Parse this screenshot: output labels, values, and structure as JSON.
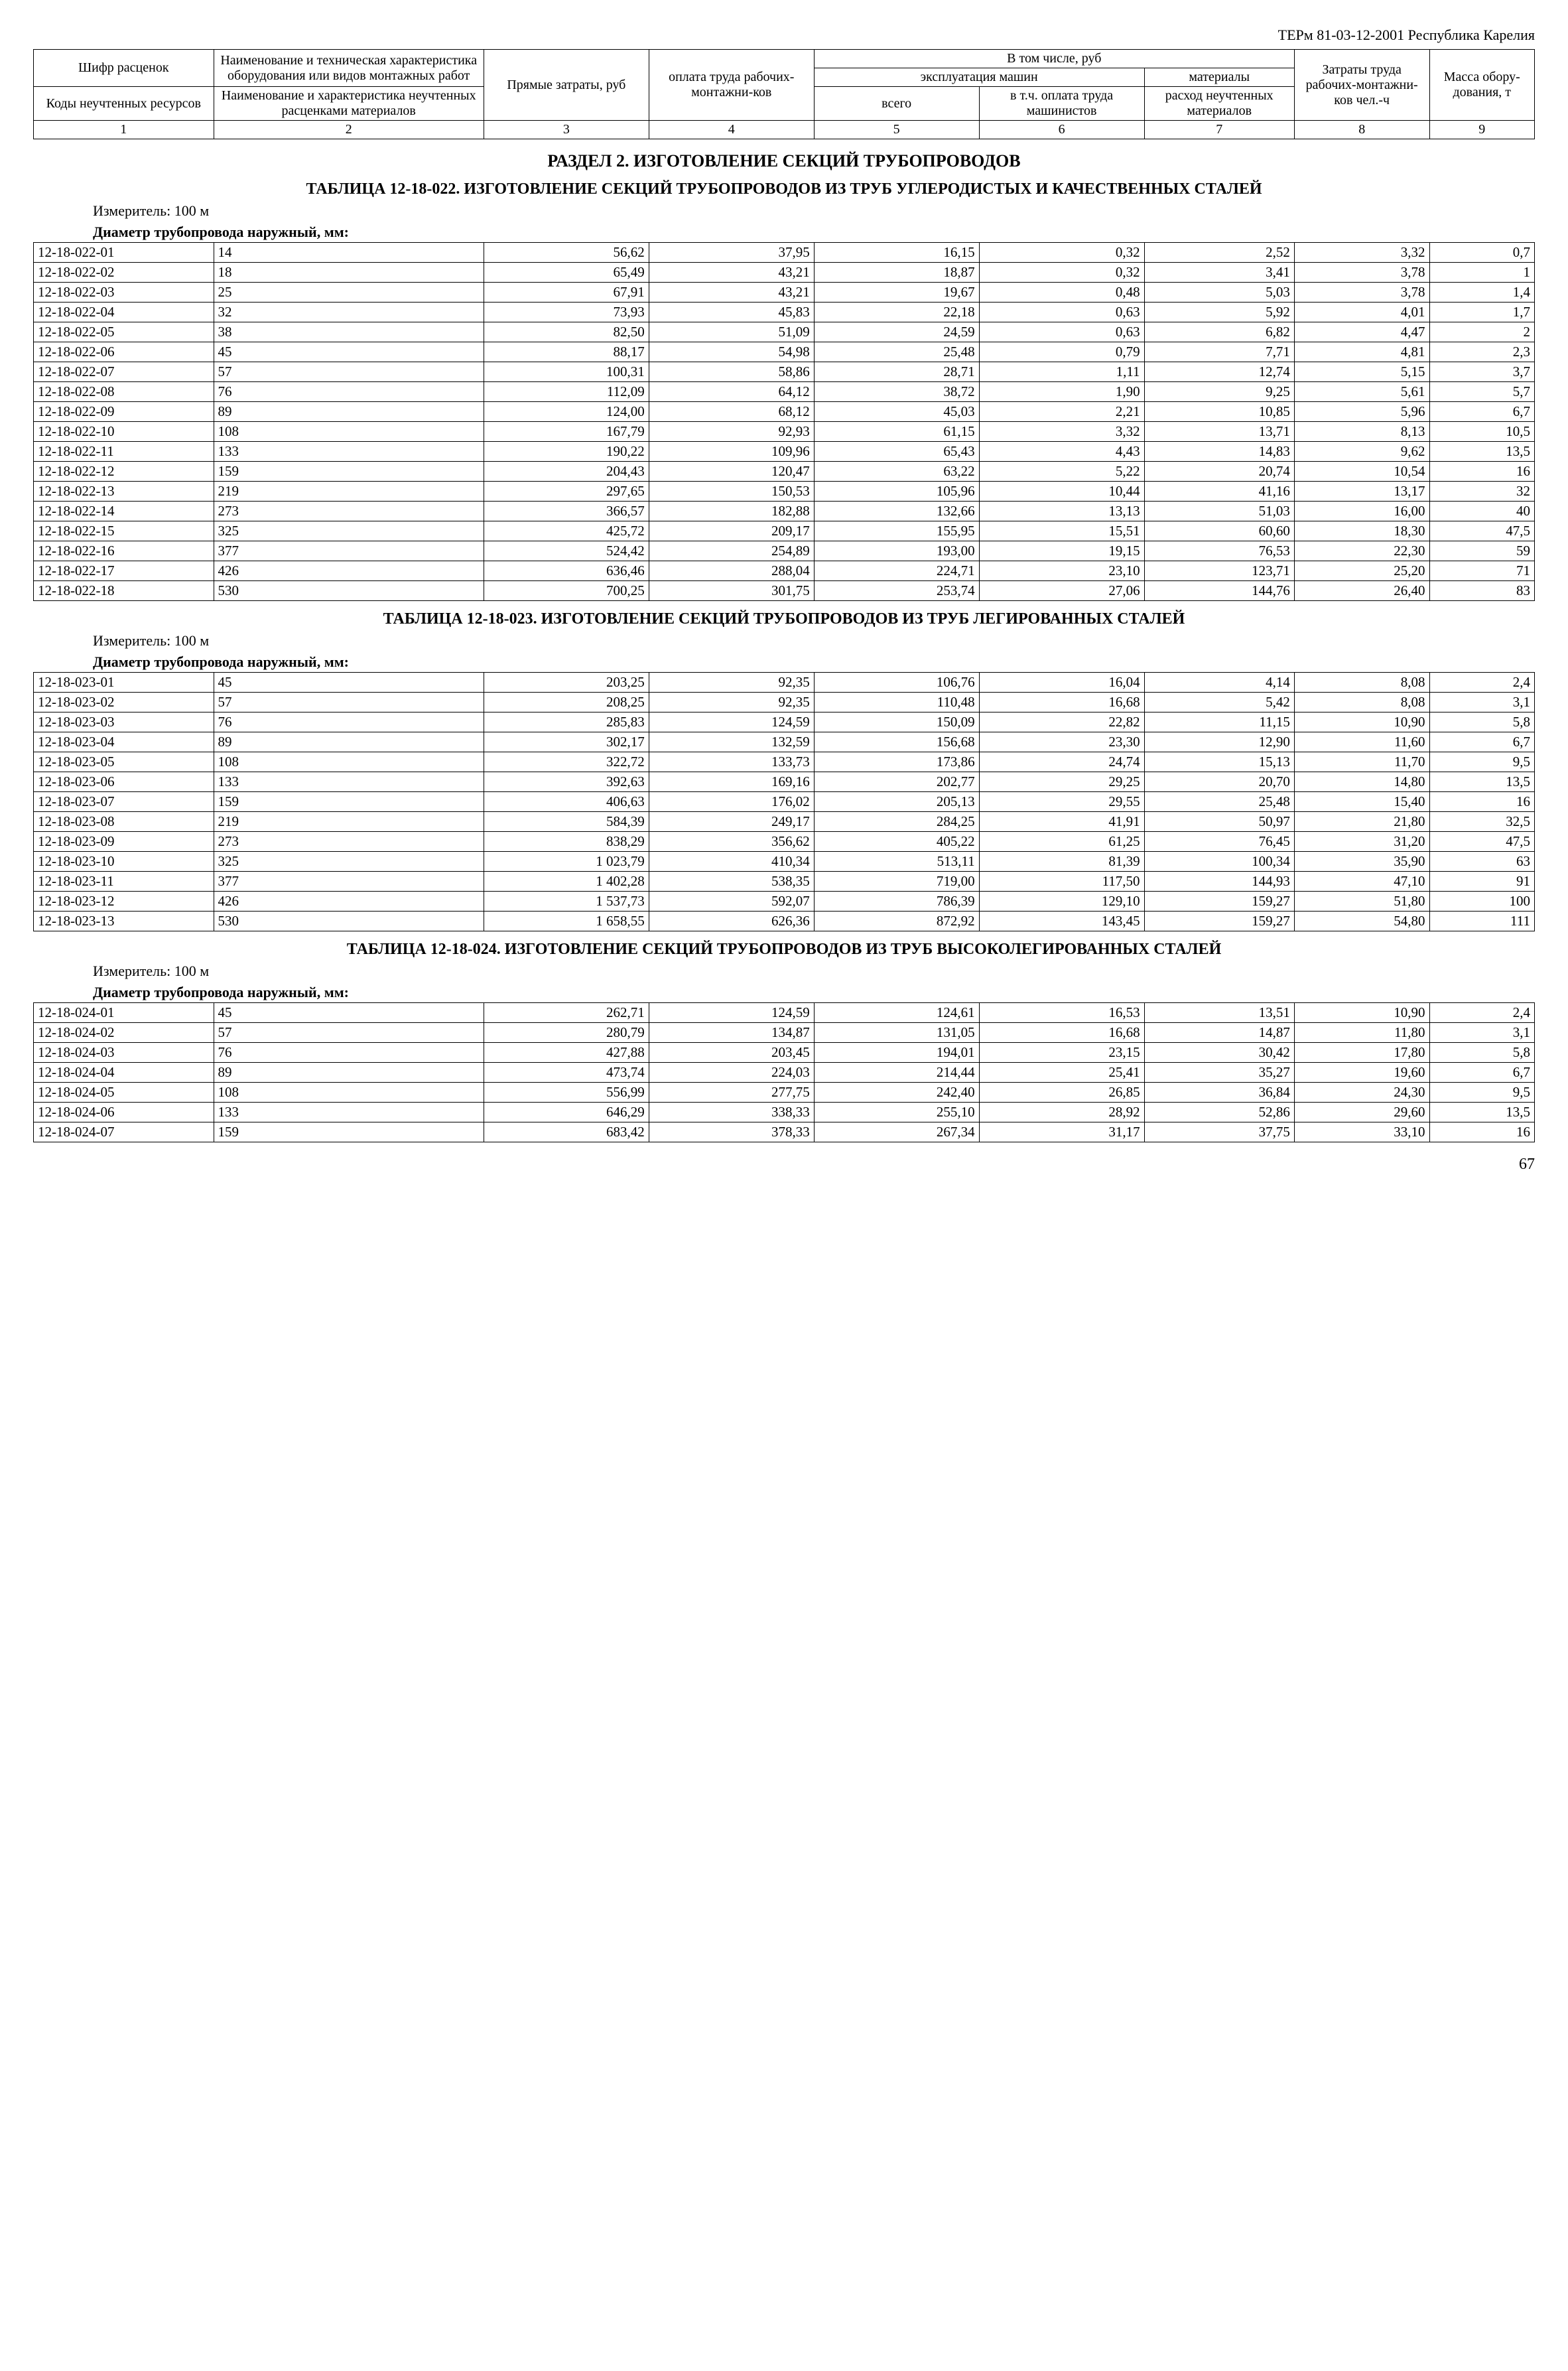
{
  "doc_header": "ТЕРм 81-03-12-2001  Республика Карелия",
  "header": {
    "c1a": "Шифр расценок",
    "c1b": "Коды неучтенных ресурсов",
    "c2a": "Наименование и техническая характеристика оборудования или видов монтажных работ",
    "c2b": "Наименование и характеристика неучтенных расценками материалов",
    "c3": "Прямые затраты, руб",
    "c4": "оплата труда рабочих-монтажни-ков",
    "c5top": "В том числе, руб",
    "c5mid": "эксплуатация машин",
    "c5": "всего",
    "c6": "в т.ч. оплата труда машинистов",
    "c7top": "материалы",
    "c7": "расход неучтенных материалов",
    "c8": "Затраты труда рабочих-монтажни-ков чел.-ч",
    "c9": "Масса обору-дования, т",
    "nums": [
      "1",
      "2",
      "3",
      "4",
      "5",
      "6",
      "7",
      "8",
      "9"
    ]
  },
  "section_title": "РАЗДЕЛ 2. ИЗГОТОВЛЕНИЕ СЕКЦИЙ ТРУБОПРОВОДОВ",
  "t022": {
    "title": "ТАБЛИЦА  12-18-022. ИЗГОТОВЛЕНИЕ СЕКЦИЙ ТРУБОПРОВОДОВ ИЗ ТРУБ УГЛЕРОДИСТЫХ И КАЧЕСТВЕННЫХ СТАЛЕЙ",
    "measure": "Измеритель: 100 м",
    "subhead": "Диаметр трубопровода наружный, мм:",
    "rows": [
      [
        "12-18-022-01",
        "14",
        "56,62",
        "37,95",
        "16,15",
        "0,32",
        "2,52",
        "3,32",
        "0,7"
      ],
      [
        "12-18-022-02",
        "18",
        "65,49",
        "43,21",
        "18,87",
        "0,32",
        "3,41",
        "3,78",
        "1"
      ],
      [
        "12-18-022-03",
        "25",
        "67,91",
        "43,21",
        "19,67",
        "0,48",
        "5,03",
        "3,78",
        "1,4"
      ],
      [
        "12-18-022-04",
        "32",
        "73,93",
        "45,83",
        "22,18",
        "0,63",
        "5,92",
        "4,01",
        "1,7"
      ],
      [
        "12-18-022-05",
        "38",
        "82,50",
        "51,09",
        "24,59",
        "0,63",
        "6,82",
        "4,47",
        "2"
      ],
      [
        "12-18-022-06",
        "45",
        "88,17",
        "54,98",
        "25,48",
        "0,79",
        "7,71",
        "4,81",
        "2,3"
      ],
      [
        "12-18-022-07",
        "57",
        "100,31",
        "58,86",
        "28,71",
        "1,11",
        "12,74",
        "5,15",
        "3,7"
      ],
      [
        "12-18-022-08",
        "76",
        "112,09",
        "64,12",
        "38,72",
        "1,90",
        "9,25",
        "5,61",
        "5,7"
      ],
      [
        "12-18-022-09",
        "89",
        "124,00",
        "68,12",
        "45,03",
        "2,21",
        "10,85",
        "5,96",
        "6,7"
      ],
      [
        "12-18-022-10",
        "108",
        "167,79",
        "92,93",
        "61,15",
        "3,32",
        "13,71",
        "8,13",
        "10,5"
      ],
      [
        "12-18-022-11",
        "133",
        "190,22",
        "109,96",
        "65,43",
        "4,43",
        "14,83",
        "9,62",
        "13,5"
      ],
      [
        "12-18-022-12",
        "159",
        "204,43",
        "120,47",
        "63,22",
        "5,22",
        "20,74",
        "10,54",
        "16"
      ],
      [
        "12-18-022-13",
        "219",
        "297,65",
        "150,53",
        "105,96",
        "10,44",
        "41,16",
        "13,17",
        "32"
      ],
      [
        "12-18-022-14",
        "273",
        "366,57",
        "182,88",
        "132,66",
        "13,13",
        "51,03",
        "16,00",
        "40"
      ],
      [
        "12-18-022-15",
        "325",
        "425,72",
        "209,17",
        "155,95",
        "15,51",
        "60,60",
        "18,30",
        "47,5"
      ],
      [
        "12-18-022-16",
        "377",
        "524,42",
        "254,89",
        "193,00",
        "19,15",
        "76,53",
        "22,30",
        "59"
      ],
      [
        "12-18-022-17",
        "426",
        "636,46",
        "288,04",
        "224,71",
        "23,10",
        "123,71",
        "25,20",
        "71"
      ],
      [
        "12-18-022-18",
        "530",
        "700,25",
        "301,75",
        "253,74",
        "27,06",
        "144,76",
        "26,40",
        "83"
      ]
    ]
  },
  "t023": {
    "title": "ТАБЛИЦА  12-18-023. ИЗГОТОВЛЕНИЕ СЕКЦИЙ ТРУБОПРОВОДОВ ИЗ ТРУБ ЛЕГИРОВАННЫХ СТАЛЕЙ",
    "measure": "Измеритель: 100 м",
    "subhead": "Диаметр трубопровода наружный, мм:",
    "rows": [
      [
        "12-18-023-01",
        "45",
        "203,25",
        "92,35",
        "106,76",
        "16,04",
        "4,14",
        "8,08",
        "2,4"
      ],
      [
        "12-18-023-02",
        "57",
        "208,25",
        "92,35",
        "110,48",
        "16,68",
        "5,42",
        "8,08",
        "3,1"
      ],
      [
        "12-18-023-03",
        "76",
        "285,83",
        "124,59",
        "150,09",
        "22,82",
        "11,15",
        "10,90",
        "5,8"
      ],
      [
        "12-18-023-04",
        "89",
        "302,17",
        "132,59",
        "156,68",
        "23,30",
        "12,90",
        "11,60",
        "6,7"
      ],
      [
        "12-18-023-05",
        "108",
        "322,72",
        "133,73",
        "173,86",
        "24,74",
        "15,13",
        "11,70",
        "9,5"
      ],
      [
        "12-18-023-06",
        "133",
        "392,63",
        "169,16",
        "202,77",
        "29,25",
        "20,70",
        "14,80",
        "13,5"
      ],
      [
        "12-18-023-07",
        "159",
        "406,63",
        "176,02",
        "205,13",
        "29,55",
        "25,48",
        "15,40",
        "16"
      ],
      [
        "12-18-023-08",
        "219",
        "584,39",
        "249,17",
        "284,25",
        "41,91",
        "50,97",
        "21,80",
        "32,5"
      ],
      [
        "12-18-023-09",
        "273",
        "838,29",
        "356,62",
        "405,22",
        "61,25",
        "76,45",
        "31,20",
        "47,5"
      ],
      [
        "12-18-023-10",
        "325",
        "1 023,79",
        "410,34",
        "513,11",
        "81,39",
        "100,34",
        "35,90",
        "63"
      ],
      [
        "12-18-023-11",
        "377",
        "1 402,28",
        "538,35",
        "719,00",
        "117,50",
        "144,93",
        "47,10",
        "91"
      ],
      [
        "12-18-023-12",
        "426",
        "1 537,73",
        "592,07",
        "786,39",
        "129,10",
        "159,27",
        "51,80",
        "100"
      ],
      [
        "12-18-023-13",
        "530",
        "1 658,55",
        "626,36",
        "872,92",
        "143,45",
        "159,27",
        "54,80",
        "111"
      ]
    ]
  },
  "t024": {
    "title": "ТАБЛИЦА  12-18-024. ИЗГОТОВЛЕНИЕ СЕКЦИЙ ТРУБОПРОВОДОВ ИЗ ТРУБ ВЫСОКОЛЕГИРОВАННЫХ СТАЛЕЙ",
    "measure": "Измеритель: 100 м",
    "subhead": "Диаметр трубопровода наружный, мм:",
    "rows": [
      [
        "12-18-024-01",
        "45",
        "262,71",
        "124,59",
        "124,61",
        "16,53",
        "13,51",
        "10,90",
        "2,4"
      ],
      [
        "12-18-024-02",
        "57",
        "280,79",
        "134,87",
        "131,05",
        "16,68",
        "14,87",
        "11,80",
        "3,1"
      ],
      [
        "12-18-024-03",
        "76",
        "427,88",
        "203,45",
        "194,01",
        "23,15",
        "30,42",
        "17,80",
        "5,8"
      ],
      [
        "12-18-024-04",
        "89",
        "473,74",
        "224,03",
        "214,44",
        "25,41",
        "35,27",
        "19,60",
        "6,7"
      ],
      [
        "12-18-024-05",
        "108",
        "556,99",
        "277,75",
        "242,40",
        "26,85",
        "36,84",
        "24,30",
        "9,5"
      ],
      [
        "12-18-024-06",
        "133",
        "646,29",
        "338,33",
        "255,10",
        "28,92",
        "52,86",
        "29,60",
        "13,5"
      ],
      [
        "12-18-024-07",
        "159",
        "683,42",
        "378,33",
        "267,34",
        "31,17",
        "37,75",
        "33,10",
        "16"
      ]
    ]
  },
  "page_num": "67",
  "colwidths_pct": [
    12,
    18,
    11,
    11,
    11,
    11,
    10,
    9,
    7
  ]
}
